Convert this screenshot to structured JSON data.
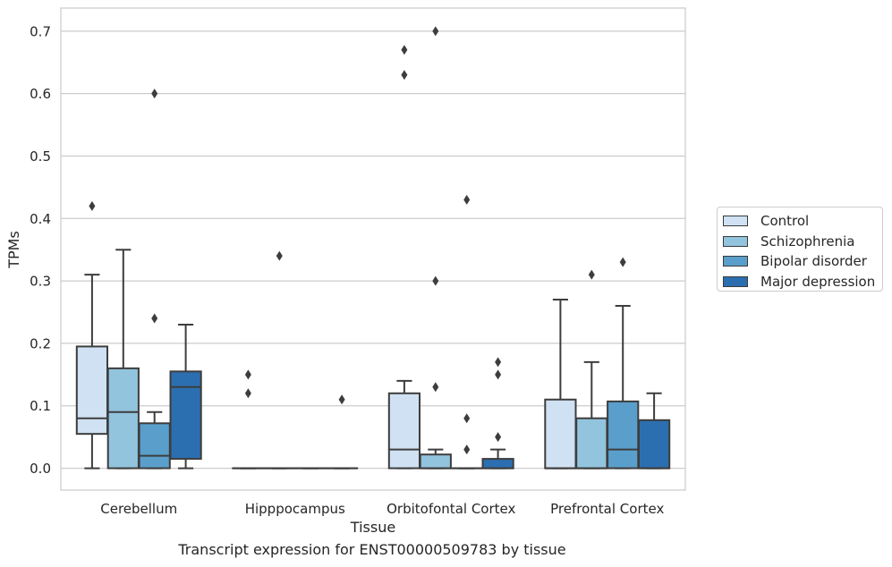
{
  "caption": "Transcript expression for ENST00000509783 by tissue",
  "chart_data": {
    "type": "box",
    "title": "",
    "xlabel": "Tissue",
    "ylabel": "TPMs",
    "ylim": [
      -0.035,
      0.737
    ],
    "yticks": [
      0.0,
      0.1,
      0.2,
      0.3,
      0.4,
      0.5,
      0.6,
      0.7
    ],
    "ytick_labels": [
      "0.0",
      "0.1",
      "0.2",
      "0.3",
      "0.4",
      "0.5",
      "0.6",
      "0.7"
    ],
    "grid": "horizontal",
    "legend_position": "right-outside",
    "categories": [
      "Cerebellum",
      "Hipppocampus",
      "Orbitofontal Cortex",
      "Prefrontal Cortex"
    ],
    "series": [
      {
        "name": "Control",
        "color": "#cfe1f2",
        "boxes": [
          {
            "whislo": 0.0,
            "q1": 0.055,
            "med": 0.08,
            "q3": 0.195,
            "whishi": 0.31,
            "fliers": [
              0.42
            ]
          },
          {
            "whislo": 0.0,
            "q1": 0.0,
            "med": 0.0,
            "q3": 0.0,
            "whishi": 0.0,
            "fliers": [
              0.12,
              0.15
            ]
          },
          {
            "whislo": 0.0,
            "q1": 0.0,
            "med": 0.03,
            "q3": 0.12,
            "whishi": 0.14,
            "fliers": [
              0.63,
              0.67
            ]
          },
          {
            "whislo": 0.0,
            "q1": 0.0,
            "med": 0.0,
            "q3": 0.11,
            "whishi": 0.27,
            "fliers": []
          }
        ]
      },
      {
        "name": "Schizophrenia",
        "color": "#93c4de",
        "boxes": [
          {
            "whislo": 0.0,
            "q1": 0.0,
            "med": 0.09,
            "q3": 0.16,
            "whishi": 0.35,
            "fliers": []
          },
          {
            "whislo": 0.0,
            "q1": 0.0,
            "med": 0.0,
            "q3": 0.0,
            "whishi": 0.0,
            "fliers": [
              0.34
            ]
          },
          {
            "whislo": 0.0,
            "q1": 0.0,
            "med": 0.0,
            "q3": 0.022,
            "whishi": 0.03,
            "fliers": [
              0.13,
              0.3,
              0.7
            ]
          },
          {
            "whislo": 0.0,
            "q1": 0.0,
            "med": 0.0,
            "q3": 0.08,
            "whishi": 0.17,
            "fliers": [
              0.31
            ]
          }
        ]
      },
      {
        "name": "Bipolar disorder",
        "color": "#5a9fcb",
        "boxes": [
          {
            "whislo": 0.0,
            "q1": 0.0,
            "med": 0.02,
            "q3": 0.072,
            "whishi": 0.09,
            "fliers": [
              0.24,
              0.6
            ]
          },
          {
            "whislo": 0.0,
            "q1": 0.0,
            "med": 0.0,
            "q3": 0.0,
            "whishi": 0.0,
            "fliers": []
          },
          {
            "whislo": 0.0,
            "q1": 0.0,
            "med": 0.0,
            "q3": 0.0,
            "whishi": 0.0,
            "fliers": [
              0.03,
              0.08,
              0.43
            ]
          },
          {
            "whislo": 0.0,
            "q1": 0.0,
            "med": 0.03,
            "q3": 0.107,
            "whishi": 0.26,
            "fliers": [
              0.33
            ]
          }
        ]
      },
      {
        "name": "Major depression",
        "color": "#2c6fb0",
        "boxes": [
          {
            "whislo": 0.0,
            "q1": 0.015,
            "med": 0.13,
            "q3": 0.155,
            "whishi": 0.23,
            "fliers": []
          },
          {
            "whislo": 0.0,
            "q1": 0.0,
            "med": 0.0,
            "q3": 0.0,
            "whishi": 0.0,
            "fliers": [
              0.11
            ]
          },
          {
            "whislo": 0.0,
            "q1": 0.0,
            "med": 0.0,
            "q3": 0.015,
            "whishi": 0.03,
            "fliers": [
              0.05,
              0.15,
              0.17
            ]
          },
          {
            "whislo": 0.0,
            "q1": 0.0,
            "med": 0.0,
            "q3": 0.077,
            "whishi": 0.12,
            "fliers": []
          }
        ]
      }
    ]
  }
}
